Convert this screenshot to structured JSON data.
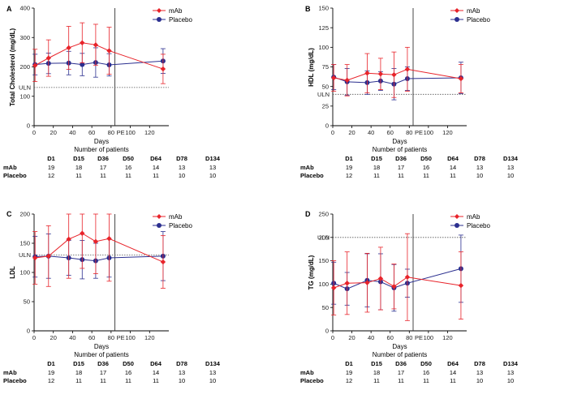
{
  "colors": {
    "mab": "#e8232a",
    "placebo": "#2b2f8f",
    "axis": "#000000",
    "uln": "#555555"
  },
  "shared": {
    "series_names": [
      "mAb",
      "Placebo"
    ],
    "xlabel": "Days",
    "np_title": "Number of patients",
    "np_headers": [
      "D1",
      "D15",
      "D36",
      "D50",
      "D64",
      "D78",
      "D134"
    ],
    "np_rows": [
      {
        "label": "mAb",
        "values": [
          "19",
          "18",
          "17",
          "16",
          "14",
          "13",
          "13"
        ]
      },
      {
        "label": "Placebo",
        "values": [
          "12",
          "11",
          "11",
          "11",
          "11",
          "10",
          "10"
        ]
      }
    ],
    "pe_label": "PE",
    "pe_x": 84,
    "uln_label": "ULN"
  },
  "chart_data": [
    {
      "type": "line",
      "panel": "A",
      "ylabel": "Total Cholesterol (mg/dL)",
      "xlim": [
        0,
        140
      ],
      "ylim": [
        0,
        400
      ],
      "xticks": [
        0,
        20,
        40,
        60,
        80,
        100,
        120
      ],
      "yticks": [
        0,
        100,
        200,
        300,
        400
      ],
      "uln": 130,
      "series": [
        {
          "name": "mAb",
          "x": [
            1,
            15,
            36,
            50,
            64,
            78,
            134
          ],
          "y": [
            205,
            230,
            265,
            282,
            275,
            255,
            193
          ],
          "err": [
            55,
            62,
            73,
            68,
            70,
            80,
            50
          ]
        },
        {
          "name": "Placebo",
          "x": [
            1,
            15,
            36,
            50,
            64,
            78,
            134
          ],
          "y": [
            208,
            212,
            213,
            208,
            215,
            207,
            220
          ],
          "err": [
            35,
            35,
            40,
            38,
            50,
            38,
            42
          ]
        }
      ]
    },
    {
      "type": "line",
      "panel": "B",
      "ylabel": "HDL (mg/dL)",
      "xlim": [
        0,
        140
      ],
      "ylim": [
        0,
        150
      ],
      "xticks": [
        0,
        20,
        40,
        60,
        80,
        100,
        120
      ],
      "yticks": [
        0,
        25,
        50,
        75,
        100,
        125,
        150
      ],
      "uln": 40,
      "series": [
        {
          "name": "mAb",
          "x": [
            1,
            15,
            36,
            50,
            64,
            78,
            134
          ],
          "y": [
            61,
            58,
            67,
            66,
            65,
            72,
            60
          ],
          "err": [
            17,
            20,
            25,
            20,
            29,
            28,
            18
          ]
        },
        {
          "name": "Placebo",
          "x": [
            1,
            15,
            36,
            50,
            64,
            78,
            134
          ],
          "y": [
            62,
            56,
            55,
            57,
            53,
            60,
            61
          ],
          "err": [
            16,
            17,
            15,
            12,
            20,
            15,
            20
          ]
        }
      ]
    },
    {
      "type": "line",
      "panel": "C",
      "ylabel": "LDL",
      "xlim": [
        0,
        140
      ],
      "ylim": [
        0,
        200
      ],
      "xticks": [
        0,
        20,
        40,
        60,
        80,
        100,
        120
      ],
      "yticks": [
        0,
        50,
        100,
        150,
        200
      ],
      "uln": 130,
      "series": [
        {
          "name": "mAb",
          "x": [
            1,
            15,
            36,
            50,
            64,
            78,
            134
          ],
          "y": [
            125,
            128,
            157,
            167,
            153,
            158,
            118
          ],
          "err": [
            45,
            52,
            67,
            60,
            55,
            73,
            45
          ]
        },
        {
          "name": "Placebo",
          "x": [
            1,
            15,
            36,
            50,
            64,
            78,
            134
          ],
          "y": [
            127,
            128,
            125,
            122,
            120,
            125,
            128
          ],
          "err": [
            35,
            38,
            30,
            33,
            30,
            33,
            42
          ]
        }
      ]
    },
    {
      "type": "line",
      "panel": "D",
      "ylabel": "TG (mg/dL)",
      "xlim": [
        0,
        140
      ],
      "ylim": [
        0,
        250
      ],
      "xticks": [
        0,
        20,
        40,
        60,
        80,
        100,
        120
      ],
      "yticks": [
        0,
        50,
        100,
        150,
        200,
        250
      ],
      "uln": 200,
      "series": [
        {
          "name": "mAb",
          "x": [
            1,
            15,
            36,
            50,
            64,
            78,
            134
          ],
          "y": [
            92,
            102,
            103,
            112,
            95,
            115,
            97
          ],
          "err": [
            58,
            67,
            63,
            67,
            48,
            93,
            72
          ]
        },
        {
          "name": "Placebo",
          "x": [
            1,
            15,
            36,
            50,
            64,
            78,
            134
          ],
          "y": [
            102,
            90,
            108,
            105,
            92,
            102,
            133
          ],
          "err": [
            45,
            35,
            57,
            60,
            50,
            30,
            72
          ]
        }
      ]
    }
  ]
}
